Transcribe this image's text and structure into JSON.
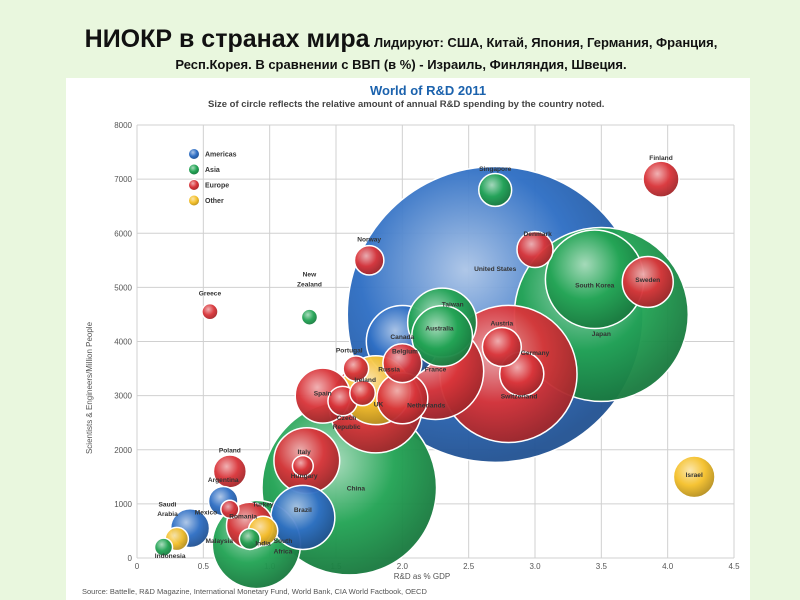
{
  "slide": {
    "title": "НИОКР в странах мира",
    "subtitle_line1": "Лидируют: США, Китай, Япония, Германия, Франция,",
    "subtitle_line2": "Респ.Корея. В сравнении с ВВП (в %) - Израиль, Финляндия, Швеция."
  },
  "colors": {
    "Americas": "#2f6fc4",
    "Asia": "#23a455",
    "Europe": "#d9353a",
    "Other": "#f5c12c",
    "background": "#e9f7de",
    "title_blue": "#1b62ad"
  },
  "chart_data": {
    "type": "scatter",
    "bubble": true,
    "title": "World of R&D 2011",
    "subtitle": "Size of circle reflects the relative amount of annual R&D spending by the country noted.",
    "xlabel": "R&D as % GDP",
    "ylabel": "Scientists & Engineers/Million People",
    "xlim": [
      0,
      4.5
    ],
    "ylim": [
      0,
      8000
    ],
    "x_ticks": [
      "0",
      "0.5",
      "1.0",
      "1.5",
      "2.0",
      "2.5",
      "3.0",
      "3.5",
      "4.0",
      "4.5"
    ],
    "y_ticks": [
      "0",
      "1000",
      "2000",
      "3000",
      "4000",
      "5000",
      "6000",
      "7000",
      "8000"
    ],
    "grid": true,
    "legend_position": "top-left",
    "legend": [
      "Americas",
      "Asia",
      "Europe",
      "Other"
    ],
    "source": "Source: Battelle, R&D Magazine, International Monetary Fund, World Bank, CIA World Factbook, OECD",
    "points": [
      {
        "name": "United States",
        "region": "Americas",
        "x": 2.7,
        "y": 4500,
        "size": 405
      },
      {
        "name": "China",
        "region": "Asia",
        "x": 1.6,
        "y": 1300,
        "size": 141
      },
      {
        "name": "Japan",
        "region": "Asia",
        "x": 3.5,
        "y": 4500,
        "size": 140
      },
      {
        "name": "Germany",
        "region": "Europe",
        "x": 2.8,
        "y": 3400,
        "size": 87
      },
      {
        "name": "South Korea",
        "region": "Asia",
        "x": 3.45,
        "y": 5150,
        "size": 45
      },
      {
        "name": "France",
        "region": "Europe",
        "x": 2.25,
        "y": 3450,
        "size": 43
      },
      {
        "name": "UK",
        "region": "Europe",
        "x": 1.8,
        "y": 2800,
        "size": 40
      },
      {
        "name": "India",
        "region": "Asia",
        "x": 0.9,
        "y": 250,
        "size": 36
      },
      {
        "name": "Canada",
        "region": "Americas",
        "x": 2.0,
        "y": 4000,
        "size": 24
      },
      {
        "name": "Brazil",
        "region": "Americas",
        "x": 1.25,
        "y": 750,
        "size": 19
      },
      {
        "name": "Russia",
        "region": "Other",
        "x": 1.8,
        "y": 3100,
        "size": 22
      },
      {
        "name": "Italy",
        "region": "Europe",
        "x": 1.28,
        "y": 1800,
        "size": 20
      },
      {
        "name": "Taiwan",
        "region": "Asia",
        "x": 2.3,
        "y": 4350,
        "size": 22
      },
      {
        "name": "Netherlands",
        "region": "Europe",
        "x": 2.0,
        "y": 2950,
        "size": 12
      },
      {
        "name": "Sweden",
        "region": "Europe",
        "x": 3.85,
        "y": 5100,
        "size": 12
      },
      {
        "name": "Spain",
        "region": "Europe",
        "x": 1.4,
        "y": 3000,
        "size": 14
      },
      {
        "name": "Australia",
        "region": "Asia",
        "x": 2.3,
        "y": 4100,
        "size": 17
      },
      {
        "name": "Switzerland",
        "region": "Europe",
        "x": 2.9,
        "y": 3400,
        "size": 9
      },
      {
        "name": "Austria",
        "region": "Europe",
        "x": 2.75,
        "y": 3900,
        "size": 7
      },
      {
        "name": "Belgium",
        "region": "Europe",
        "x": 2.0,
        "y": 3600,
        "size": 7
      },
      {
        "name": "Denmark",
        "region": "Europe",
        "x": 3.0,
        "y": 5700,
        "size": 6
      },
      {
        "name": "Finland",
        "region": "Europe",
        "x": 3.95,
        "y": 7000,
        "size": 6
      },
      {
        "name": "Israel",
        "region": "Other",
        "x": 4.2,
        "y": 1500,
        "size": 8
      },
      {
        "name": "Norway",
        "region": "Europe",
        "x": 1.75,
        "y": 5500,
        "size": 4
      },
      {
        "name": "Singapore",
        "region": "Asia",
        "x": 2.7,
        "y": 6800,
        "size": 5
      },
      {
        "name": "Turkey",
        "region": "Europe",
        "x": 0.85,
        "y": 600,
        "size": 10
      },
      {
        "name": "Mexico",
        "region": "Americas",
        "x": 0.4,
        "y": 550,
        "size": 7
      },
      {
        "name": "South Africa",
        "region": "Other",
        "x": 0.95,
        "y": 500,
        "size": 4
      },
      {
        "name": "Poland",
        "region": "Europe",
        "x": 0.7,
        "y": 1600,
        "size": 5
      },
      {
        "name": "Argentina",
        "region": "Americas",
        "x": 0.65,
        "y": 1050,
        "size": 4
      },
      {
        "name": "Portugal",
        "region": "Europe",
        "x": 1.65,
        "y": 3500,
        "size": 3
      },
      {
        "name": "Ireland",
        "region": "Europe",
        "x": 1.7,
        "y": 3050,
        "size": 3
      },
      {
        "name": "Czech Republic",
        "region": "Europe",
        "x": 1.55,
        "y": 2900,
        "size": 4
      },
      {
        "name": "Hungary",
        "region": "Europe",
        "x": 1.25,
        "y": 1700,
        "size": 2
      },
      {
        "name": "Romania",
        "region": "Europe",
        "x": 0.7,
        "y": 900,
        "size": 1.5
      },
      {
        "name": "Malaysia",
        "region": "Asia",
        "x": 0.85,
        "y": 350,
        "size": 2
      },
      {
        "name": "Saudi Arabia",
        "region": "Other",
        "x": 0.3,
        "y": 350,
        "size": 2.5
      },
      {
        "name": "Indonesia",
        "region": "Asia",
        "x": 0.2,
        "y": 200,
        "size": 1.5
      },
      {
        "name": "Greece",
        "region": "Europe",
        "x": 0.55,
        "y": 4550,
        "size": 1.2
      },
      {
        "name": "New Zealand",
        "region": "Asia",
        "x": 1.3,
        "y": 4450,
        "size": 1.2
      }
    ],
    "labels": [
      {
        "text": "United States",
        "x": 2.7,
        "y": 5300,
        "align": "middle"
      },
      {
        "text": "China",
        "x": 1.65,
        "y": 1250,
        "align": "middle"
      },
      {
        "text": "Japan",
        "x": 3.5,
        "y": 4100,
        "align": "middle"
      },
      {
        "text": "Germany",
        "x": 3.0,
        "y": 3750,
        "align": "middle"
      },
      {
        "text": "South Korea",
        "x": 3.45,
        "y": 5000,
        "align": "middle"
      },
      {
        "text": "France",
        "x": 2.25,
        "y": 3450,
        "align": "middle"
      },
      {
        "text": "UK",
        "x": 1.82,
        "y": 2800,
        "align": "middle"
      },
      {
        "text": "India",
        "x": 0.95,
        "y": 230,
        "align": "middle"
      },
      {
        "text": "Canada",
        "x": 2.0,
        "y": 4050,
        "align": "middle"
      },
      {
        "text": "Brazil",
        "x": 1.25,
        "y": 850,
        "align": "middle"
      },
      {
        "text": "Russia",
        "x": 1.9,
        "y": 3450,
        "align": "middle"
      },
      {
        "text": "Italy",
        "x": 1.26,
        "y": 1920,
        "align": "middle"
      },
      {
        "text": "Hungary",
        "x": 1.26,
        "y": 1480,
        "align": "middle"
      },
      {
        "text": "Taiwan",
        "x": 2.38,
        "y": 4650,
        "align": "middle"
      },
      {
        "text": "Australia",
        "x": 2.28,
        "y": 4200,
        "align": "middle"
      },
      {
        "text": "Netherlands",
        "x": 2.18,
        "y": 2780,
        "align": "middle"
      },
      {
        "text": "Sweden",
        "x": 3.85,
        "y": 5100,
        "align": "middle"
      },
      {
        "text": "Spain",
        "x": 1.4,
        "y": 3000,
        "align": "middle"
      },
      {
        "text": "Switzerland",
        "x": 2.88,
        "y": 2950,
        "align": "middle"
      },
      {
        "text": "Austria",
        "x": 2.75,
        "y": 4300,
        "align": "middle"
      },
      {
        "text": "Belgium",
        "x": 2.02,
        "y": 3780,
        "align": "middle"
      },
      {
        "text": "Denmark",
        "x": 3.02,
        "y": 5950,
        "align": "middle"
      },
      {
        "text": "Finland",
        "x": 3.95,
        "y": 7350,
        "align": "middle"
      },
      {
        "text": "Israel",
        "x": 4.2,
        "y": 1500,
        "align": "middle"
      },
      {
        "text": "Norway",
        "x": 1.75,
        "y": 5850,
        "align": "middle"
      },
      {
        "text": "Singapore",
        "x": 2.7,
        "y": 7150,
        "align": "middle"
      },
      {
        "text": "Turkey",
        "x": 0.95,
        "y": 950,
        "align": "middle"
      },
      {
        "text": "Mexico",
        "x": 0.52,
        "y": 800,
        "align": "middle"
      },
      {
        "text": "South",
        "x": 1.1,
        "y": 280,
        "align": "middle"
      },
      {
        "text": "Africa",
        "x": 1.1,
        "y": 80,
        "align": "middle"
      },
      {
        "text": "Poland",
        "x": 0.7,
        "y": 1950,
        "align": "middle"
      },
      {
        "text": "Argentina",
        "x": 0.65,
        "y": 1400,
        "align": "middle"
      },
      {
        "text": "Portugal",
        "x": 1.6,
        "y": 3800,
        "align": "middle"
      },
      {
        "text": "Ireland",
        "x": 1.72,
        "y": 3250,
        "align": "middle"
      },
      {
        "text": "Czech",
        "x": 1.58,
        "y": 2550,
        "align": "middle"
      },
      {
        "text": "Republic",
        "x": 1.58,
        "y": 2380,
        "align": "middle"
      },
      {
        "text": "Romania",
        "x": 0.8,
        "y": 730,
        "align": "middle"
      },
      {
        "text": "Malaysia",
        "x": 0.62,
        "y": 280,
        "align": "middle"
      },
      {
        "text": "Saudi",
        "x": 0.23,
        "y": 950,
        "align": "middle"
      },
      {
        "text": "Arabia",
        "x": 0.23,
        "y": 780,
        "align": "middle"
      },
      {
        "text": "Indonesia",
        "x": 0.25,
        "y": 0,
        "align": "middle"
      },
      {
        "text": "Greece",
        "x": 0.55,
        "y": 4850,
        "align": "middle"
      },
      {
        "text": "New",
        "x": 1.3,
        "y": 5200,
        "align": "middle"
      },
      {
        "text": "Zealand",
        "x": 1.3,
        "y": 5020,
        "align": "middle"
      }
    ]
  }
}
